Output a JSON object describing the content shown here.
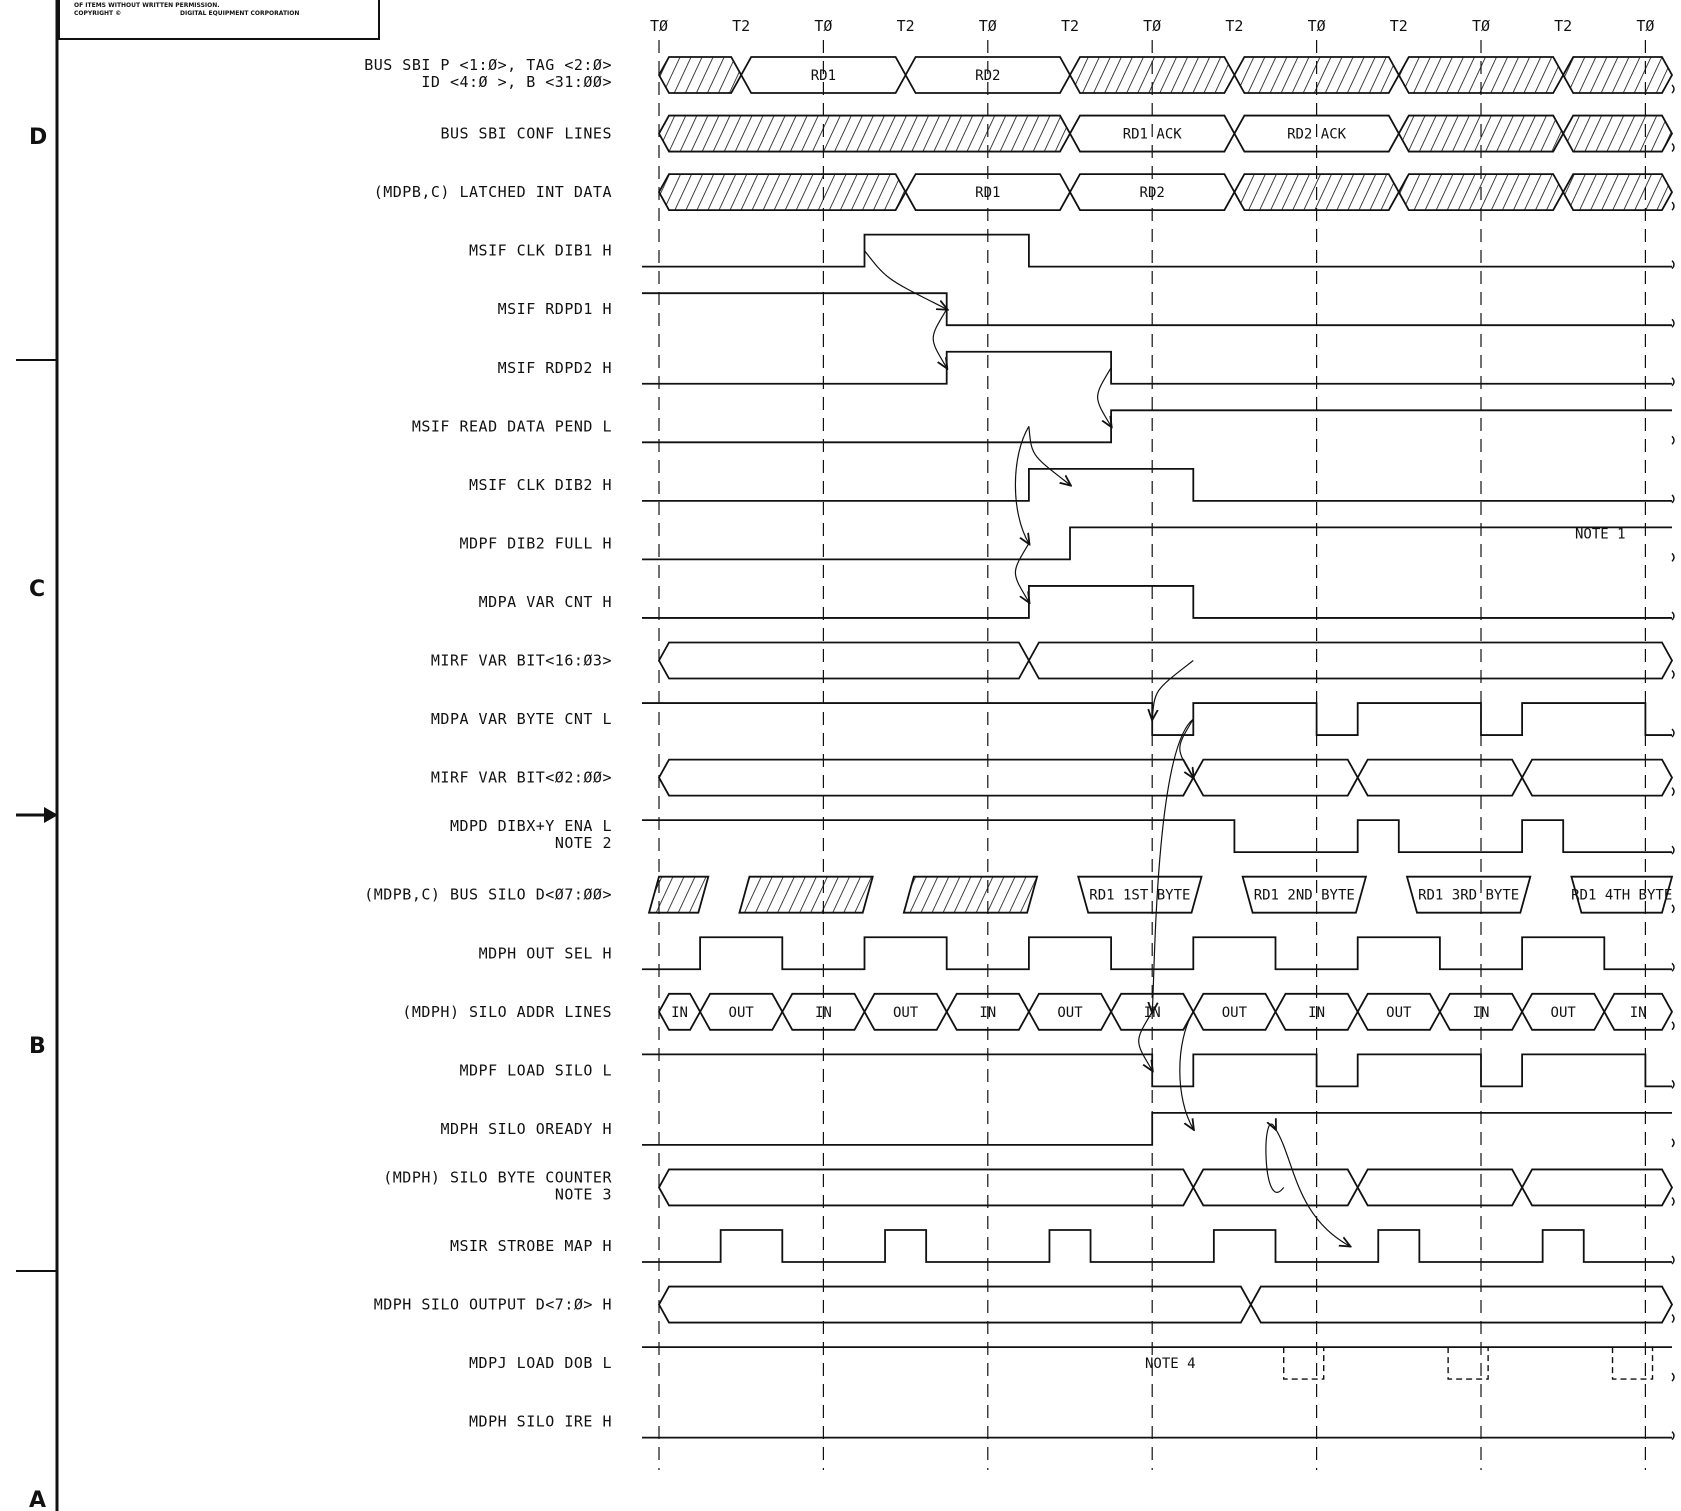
{
  "copyright": {
    "line1": "OF ITEMS WITHOUT WRITTEN PERMISSION.",
    "line2": "COPYRIGHT ©",
    "line3": "DIGITAL EQUIPMENT CORPORATION"
  },
  "zones": [
    "D",
    "C",
    "B",
    "A"
  ],
  "timing": [
    "TØ",
    "T2",
    "TØ",
    "T2",
    "TØ",
    "T2",
    "TØ",
    "T2",
    "TØ",
    "T2",
    "TØ",
    "T2",
    "TØ"
  ],
  "signals": [
    {
      "id": "bus-sbi",
      "label": "BUS SBI  P <1:Ø>,  TAG  <2:Ø>",
      "label2": "ID <4:Ø >,  B <31:ØØ>",
      "bus": [
        {
          "from": 0,
          "to": 1,
          "t": "hatch"
        },
        {
          "from": 1,
          "to": 3,
          "t": "RD1"
        },
        {
          "from": 3,
          "to": 5,
          "t": "RD2"
        },
        {
          "from": 5,
          "to": 7,
          "t": "hatch"
        },
        {
          "from": 7,
          "to": 9,
          "t": "hatch"
        },
        {
          "from": 9,
          "to": 11,
          "t": "hatch"
        },
        {
          "from": 11,
          "to": 13,
          "t": "hatch"
        }
      ]
    },
    {
      "id": "conf",
      "label": "BUS SBI  CONF  LINES",
      "bus": [
        {
          "from": 0,
          "to": 5,
          "t": "hatch"
        },
        {
          "from": 5,
          "to": 7,
          "t": "RD1 ACK"
        },
        {
          "from": 7,
          "to": 9,
          "t": "RD2 ACK"
        },
        {
          "from": 9,
          "to": 11,
          "t": "hatch"
        },
        {
          "from": 11,
          "to": 13,
          "t": "hatch"
        }
      ]
    },
    {
      "id": "latched",
      "label": "(MDPB,C)  LATCHED  INT  DATA",
      "bus": [
        {
          "from": 0,
          "to": 3,
          "t": "hatch"
        },
        {
          "from": 3,
          "to": 5,
          "t": "RD1"
        },
        {
          "from": 5,
          "to": 7,
          "t": "RD2"
        },
        {
          "from": 7,
          "to": 9,
          "t": "hatch"
        },
        {
          "from": 9,
          "to": 11,
          "t": "hatch"
        },
        {
          "from": 11,
          "to": 13,
          "t": "hatch"
        }
      ]
    },
    {
      "id": "clk-dib1",
      "label": "MSIF  CLK  DIB1  H",
      "wave": [
        [
          0,
          0
        ],
        [
          2.5,
          1
        ],
        [
          4.5,
          0
        ]
      ]
    },
    {
      "id": "rdpd1",
      "label": "MSIF  RDPD1  H",
      "wave": [
        [
          0,
          1
        ],
        [
          3.5,
          0
        ]
      ]
    },
    {
      "id": "rdpd2",
      "label": "MSIF  RDPD2  H",
      "wave": [
        [
          0,
          0
        ],
        [
          3.5,
          1
        ],
        [
          5.5,
          0
        ]
      ]
    },
    {
      "id": "rdpend",
      "label": "MSIF  READ  DATA  PEND  L",
      "wave": [
        [
          0,
          0
        ],
        [
          5.5,
          1
        ]
      ]
    },
    {
      "id": "clk-dib2",
      "label": "MSIF  CLK  DIB2  H",
      "wave": [
        [
          0,
          0
        ],
        [
          4.5,
          1
        ],
        [
          6.5,
          0
        ]
      ]
    },
    {
      "id": "dib2-full",
      "label": "MDPF  DIB2  FULL  H",
      "wave": [
        [
          0,
          0
        ],
        [
          5,
          1
        ]
      ],
      "note": "NOTE 1"
    },
    {
      "id": "var-cnt",
      "label": "MDPA  VAR  CNT  H",
      "wave": [
        [
          0,
          0
        ],
        [
          4.5,
          1
        ],
        [
          6.5,
          0
        ]
      ]
    },
    {
      "id": "var-bit1",
      "label": "MIRF  VAR  BIT<16:Ø3>",
      "bus": [
        {
          "from": 0,
          "to": 4.5,
          "t": ""
        },
        {
          "from": 4.5,
          "to": 13,
          "t": ""
        }
      ]
    },
    {
      "id": "var-byte",
      "label": "MDPA  VAR  BYTE  CNT  L",
      "wave": [
        [
          0,
          1
        ],
        [
          6,
          0
        ],
        [
          6.5,
          1
        ],
        [
          8,
          0
        ],
        [
          8.5,
          1
        ],
        [
          10,
          0
        ],
        [
          10.5,
          1
        ],
        [
          12,
          0
        ]
      ]
    },
    {
      "id": "var-bit2",
      "label": "MIRF  VAR  BIT<Ø2:ØØ>",
      "bus": [
        {
          "from": 0,
          "to": 6.5,
          "t": ""
        },
        {
          "from": 6.5,
          "to": 8.5,
          "t": ""
        },
        {
          "from": 8.5,
          "to": 10.5,
          "t": ""
        },
        {
          "from": 10.5,
          "to": 13,
          "t": ""
        }
      ]
    },
    {
      "id": "dib-ena",
      "label": "MDPD  DIBX+Y  ENA  L",
      "label2": "NOTE 2",
      "wave": [
        [
          0,
          1
        ],
        [
          7,
          0
        ],
        [
          8.5,
          1
        ],
        [
          9,
          0
        ],
        [
          10.5,
          1
        ],
        [
          11,
          0
        ]
      ]
    },
    {
      "id": "silo-d",
      "label": "(MDPB,C)  BUS  SILO  D<Ø7:ØØ>",
      "silo": [
        {
          "from": 0,
          "to": 0.6,
          "t": "hatch"
        },
        {
          "from": 1.1,
          "to": 2.6,
          "t": "hatch"
        },
        {
          "from": 3.1,
          "to": 4.6,
          "t": "hatch"
        },
        {
          "from": 5.1,
          "to": 6.6,
          "t": "RD1  1ST BYTE"
        },
        {
          "from": 7.1,
          "to": 8.6,
          "t": "RD1  2ND BYTE"
        },
        {
          "from": 9.1,
          "to": 10.6,
          "t": "RD1  3RD BYTE"
        },
        {
          "from": 11.1,
          "to": 13,
          "t": "RD1  4TH BYTE"
        }
      ]
    },
    {
      "id": "out-sel",
      "label": "MDPH  OUT  SEL  H",
      "wave": [
        [
          0,
          0
        ],
        [
          0.5,
          1
        ],
        [
          1.5,
          0
        ],
        [
          2.5,
          1
        ],
        [
          3.5,
          0
        ],
        [
          4.5,
          1
        ],
        [
          5.5,
          0
        ],
        [
          6.5,
          1
        ],
        [
          7.5,
          0
        ],
        [
          8.5,
          1
        ],
        [
          9.5,
          0
        ],
        [
          10.5,
          1
        ],
        [
          11.5,
          0
        ]
      ]
    },
    {
      "id": "silo-addr",
      "label": "(MDPH)  SILO  ADDR  LINES",
      "bus": [
        {
          "from": 0,
          "to": 0.5,
          "t": "IN"
        },
        {
          "from": 0.5,
          "to": 1.5,
          "t": "OUT"
        },
        {
          "from": 1.5,
          "to": 2.5,
          "t": "IN"
        },
        {
          "from": 2.5,
          "to": 3.5,
          "t": "OUT"
        },
        {
          "from": 3.5,
          "to": 4.5,
          "t": "IN"
        },
        {
          "from": 4.5,
          "to": 5.5,
          "t": "OUT"
        },
        {
          "from": 5.5,
          "to": 6.5,
          "t": "IN"
        },
        {
          "from": 6.5,
          "to": 7.5,
          "t": "OUT"
        },
        {
          "from": 7.5,
          "to": 8.5,
          "t": "IN"
        },
        {
          "from": 8.5,
          "to": 9.5,
          "t": "OUT"
        },
        {
          "from": 9.5,
          "to": 10.5,
          "t": "IN"
        },
        {
          "from": 10.5,
          "to": 11.5,
          "t": "OUT"
        },
        {
          "from": 11.5,
          "to": 13,
          "t": "IN"
        }
      ]
    },
    {
      "id": "load-silo",
      "label": "MDPF  LOAD  SILO  L",
      "wave": [
        [
          0,
          1
        ],
        [
          6,
          0
        ],
        [
          6.5,
          1
        ],
        [
          8,
          0
        ],
        [
          8.5,
          1
        ],
        [
          10,
          0
        ],
        [
          10.5,
          1
        ],
        [
          12,
          0
        ]
      ]
    },
    {
      "id": "oready",
      "label": "MDPH  SILO  OREADY  H",
      "wave": [
        [
          0,
          0
        ],
        [
          6,
          1
        ]
      ]
    },
    {
      "id": "byte-counter",
      "label": "(MDPH)  SILO  BYTE  COUNTER",
      "label2": "NOTE 3",
      "bus": [
        {
          "from": 0,
          "to": 6.5,
          "t": ""
        },
        {
          "from": 6.5,
          "to": 8.5,
          "t": ""
        },
        {
          "from": 8.5,
          "to": 10.5,
          "t": ""
        },
        {
          "from": 10.5,
          "to": 13,
          "t": ""
        }
      ]
    },
    {
      "id": "strobe",
      "label": "MSIR  STROBE  MAP  H",
      "wave": [
        [
          0,
          0
        ],
        [
          0.75,
          1
        ],
        [
          1.5,
          0
        ],
        [
          2.75,
          1
        ],
        [
          3.25,
          0
        ],
        [
          4.75,
          1
        ],
        [
          5.25,
          0
        ],
        [
          6.75,
          1
        ],
        [
          7.5,
          0
        ],
        [
          8.75,
          1
        ],
        [
          9.25,
          0
        ],
        [
          10.75,
          1
        ],
        [
          11.25,
          0
        ]
      ]
    },
    {
      "id": "silo-out",
      "label": "MDPH  SILO  OUTPUT  D<7:Ø>  H",
      "bus": [
        {
          "from": 0,
          "to": 7.2,
          "t": ""
        },
        {
          "from": 7.2,
          "to": 13,
          "t": ""
        }
      ]
    },
    {
      "id": "load-dob",
      "label": "MDPJ  LOAD  DOB  L",
      "wave": [
        [
          0,
          1
        ]
      ],
      "note": "NOTE 4"
    },
    {
      "id": "silo-ire",
      "label": "MDPH  SILO  IRE  H",
      "wave": [
        [
          0,
          0
        ]
      ]
    }
  ],
  "colors": {
    "ink": "#111111",
    "paper": "#ffffff"
  }
}
